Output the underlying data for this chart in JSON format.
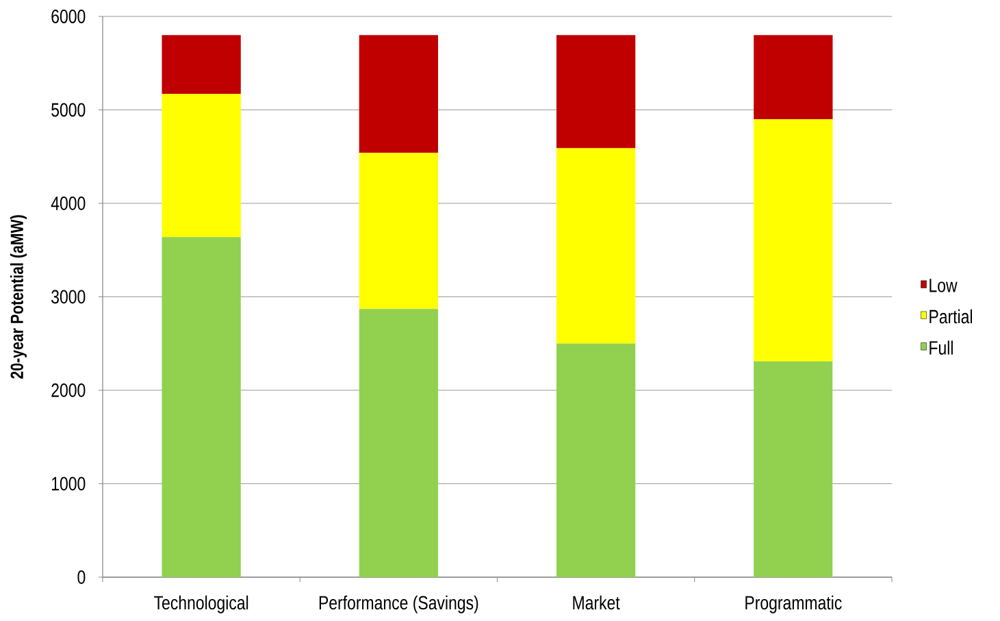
{
  "chart_data": {
    "type": "bar",
    "stacked": true,
    "ylabel": "20-year Potential (aMW)",
    "categories": [
      "Technological",
      "Performance (Savings)",
      "Market",
      "Programmatic"
    ],
    "series": [
      {
        "name": "Full",
        "color": "#92d050",
        "values": [
          3640,
          2870,
          2500,
          2310
        ]
      },
      {
        "name": "Partial",
        "color": "#ffff00",
        "values": [
          1530,
          1670,
          2090,
          2590
        ]
      },
      {
        "name": "Low",
        "color": "#c00000",
        "values": [
          630,
          1260,
          1210,
          900
        ]
      }
    ],
    "ylim": [
      0,
      6000
    ],
    "yticks": [
      0,
      1000,
      2000,
      3000,
      4000,
      5000,
      6000
    ],
    "grid": "y",
    "legend": "right"
  }
}
